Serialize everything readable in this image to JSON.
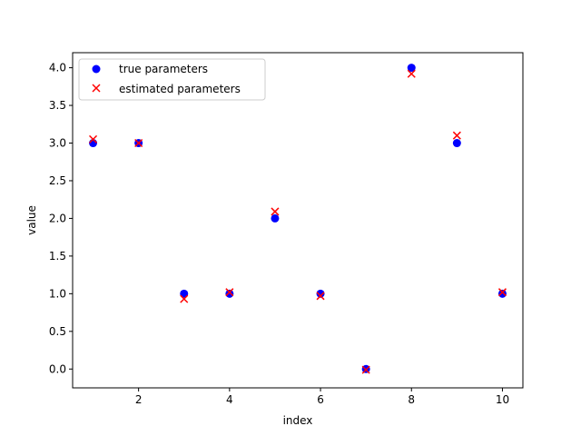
{
  "chart_data": {
    "type": "scatter",
    "xlabel": "index",
    "ylabel": "value",
    "xlim": [
      0.55,
      10.45
    ],
    "ylim": [
      -0.25,
      4.2
    ],
    "xticks": [
      2,
      4,
      6,
      8,
      10
    ],
    "yticks": [
      0.0,
      0.5,
      1.0,
      1.5,
      2.0,
      2.5,
      3.0,
      3.5,
      4.0
    ],
    "xtick_labels": [
      "2",
      "4",
      "6",
      "8",
      "10"
    ],
    "ytick_labels": [
      "0.0",
      "0.5",
      "1.0",
      "1.5",
      "2.0",
      "2.5",
      "3.0",
      "3.5",
      "4.0"
    ],
    "grid": false,
    "legend_position": "top-left",
    "series": [
      {
        "name": "true parameters",
        "marker": "circle",
        "color": "#0000ff",
        "x": [
          1,
          2,
          3,
          4,
          5,
          6,
          7,
          8,
          9,
          10
        ],
        "y": [
          3.0,
          3.0,
          1.0,
          1.0,
          2.0,
          1.0,
          0.0,
          4.0,
          3.0,
          1.0
        ]
      },
      {
        "name": "estimated parameters",
        "marker": "x",
        "color": "#ff0000",
        "x": [
          1,
          2,
          3,
          4,
          5,
          6,
          7,
          8,
          9,
          10
        ],
        "y": [
          3.05,
          3.0,
          0.93,
          1.02,
          2.09,
          0.97,
          -0.01,
          3.92,
          3.1,
          1.02
        ]
      }
    ]
  }
}
